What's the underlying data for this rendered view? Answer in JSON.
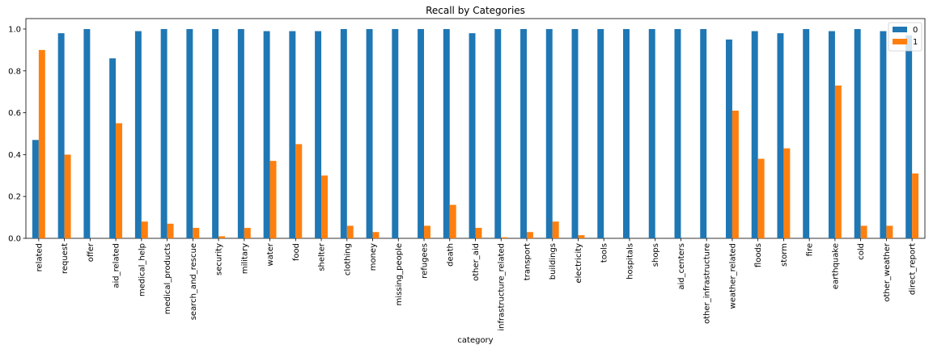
{
  "chart_data": {
    "type": "bar",
    "title": "Recall by Categories",
    "xlabel": "category",
    "ylabel": "",
    "ylim": [
      0,
      1.05
    ],
    "yticks": [
      "0.0",
      "0.2",
      "0.4",
      "0.6",
      "0.8",
      "1.0"
    ],
    "grid": false,
    "legend_position": "top-right",
    "categories": [
      "related",
      "request",
      "offer",
      "aid_related",
      "medical_help",
      "medical_products",
      "search_and_rescue",
      "security",
      "military",
      "water",
      "food",
      "shelter",
      "clothing",
      "money",
      "missing_people",
      "refugees",
      "death",
      "other_aid",
      "infrastructure_related",
      "transport",
      "buildings",
      "electricity",
      "tools",
      "hospitals",
      "shops",
      "aid_centers",
      "other_infrastructure",
      "weather_related",
      "floods",
      "storm",
      "fire",
      "earthquake",
      "cold",
      "other_weather",
      "direct_report"
    ],
    "series": [
      {
        "name": "0",
        "color": "#1f77b4",
        "values": [
          0.47,
          0.98,
          1.0,
          0.86,
          0.99,
          1.0,
          1.0,
          1.0,
          1.0,
          0.99,
          0.99,
          0.99,
          1.0,
          1.0,
          1.0,
          1.0,
          1.0,
          0.98,
          1.0,
          1.0,
          1.0,
          1.0,
          1.0,
          1.0,
          1.0,
          1.0,
          1.0,
          0.95,
          0.99,
          0.98,
          1.0,
          0.99,
          1.0,
          0.99,
          0.97
        ]
      },
      {
        "name": "1",
        "color": "#ff7f0e",
        "values": [
          0.9,
          0.4,
          0.0,
          0.55,
          0.08,
          0.07,
          0.05,
          0.01,
          0.05,
          0.37,
          0.45,
          0.3,
          0.06,
          0.03,
          0.0,
          0.06,
          0.16,
          0.05,
          0.005,
          0.03,
          0.08,
          0.015,
          0.0,
          0.0,
          0.0,
          0.0,
          0.0,
          0.61,
          0.38,
          0.43,
          0.0,
          0.73,
          0.06,
          0.06,
          0.31
        ]
      }
    ]
  }
}
